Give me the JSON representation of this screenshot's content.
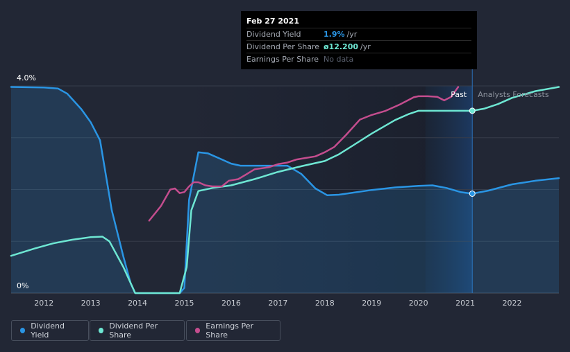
{
  "colors": {
    "dividend_yield": "#2a95e4",
    "dividend_per_share": "#6ee7d3",
    "earnings_per_share": "#c44d8e",
    "background": "#222735",
    "grid": "#363c4a"
  },
  "tooltip": {
    "date": "Feb 27 2021",
    "rows": [
      {
        "name": "Dividend Yield",
        "value": "1.9%",
        "unit": "/yr"
      },
      {
        "name": "Dividend Per Share",
        "value": "ø12.200",
        "unit": "/yr"
      },
      {
        "name": "Earnings Per Share",
        "nodata": "No data"
      }
    ]
  },
  "legend": [
    {
      "label": "Dividend Yield"
    },
    {
      "label": "Dividend Per Share"
    },
    {
      "label": "Earnings Per Share"
    }
  ],
  "chart_data": {
    "type": "line",
    "x_domain": [
      2011.3,
      2023.0
    ],
    "y_labels": [
      "4.0%",
      "0%"
    ],
    "ylim": [
      0,
      4.0
    ],
    "x_ticks": [
      "2012",
      "2013",
      "2014",
      "2015",
      "2016",
      "2017",
      "2018",
      "2019",
      "2020",
      "2021",
      "2022"
    ],
    "past_label": "Past",
    "forecast_label": "Analysts Forecasts",
    "cursor_x": 2021.15,
    "series": [
      {
        "name": "Dividend Yield",
        "values": [
          [
            2011.3,
            3.98
          ],
          [
            2012.0,
            3.97
          ],
          [
            2012.3,
            3.95
          ],
          [
            2012.5,
            3.85
          ],
          [
            2012.8,
            3.55
          ],
          [
            2013.0,
            3.3
          ],
          [
            2013.2,
            2.95
          ],
          [
            2013.45,
            1.6
          ],
          [
            2013.7,
            0.7
          ],
          [
            2013.85,
            0.2
          ],
          [
            2013.95,
            0.0
          ],
          [
            2014.9,
            0.0
          ],
          [
            2015.0,
            0.1
          ],
          [
            2015.1,
            1.8
          ],
          [
            2015.3,
            2.72
          ],
          [
            2015.5,
            2.7
          ],
          [
            2015.8,
            2.58
          ],
          [
            2016.0,
            2.5
          ],
          [
            2016.2,
            2.46
          ],
          [
            2017.2,
            2.46
          ],
          [
            2017.5,
            2.3
          ],
          [
            2017.8,
            2.02
          ],
          [
            2018.05,
            1.89
          ],
          [
            2018.3,
            1.9
          ],
          [
            2019.0,
            1.99
          ],
          [
            2019.5,
            2.04
          ],
          [
            2020.0,
            2.07
          ],
          [
            2020.3,
            2.08
          ],
          [
            2020.6,
            2.03
          ],
          [
            2020.9,
            1.95
          ],
          [
            2021.15,
            1.92
          ],
          [
            2021.5,
            1.98
          ],
          [
            2022.0,
            2.1
          ],
          [
            2022.5,
            2.17
          ],
          [
            2023.0,
            2.22
          ]
        ]
      },
      {
        "name": "Dividend Per Share",
        "values": [
          [
            2011.3,
            0.72
          ],
          [
            2011.8,
            0.86
          ],
          [
            2012.2,
            0.96
          ],
          [
            2012.6,
            1.03
          ],
          [
            2013.0,
            1.08
          ],
          [
            2013.25,
            1.09
          ],
          [
            2013.4,
            1.0
          ],
          [
            2013.7,
            0.5
          ],
          [
            2013.95,
            0.0
          ],
          [
            2014.9,
            0.0
          ],
          [
            2015.05,
            0.5
          ],
          [
            2015.15,
            1.6
          ],
          [
            2015.3,
            1.97
          ],
          [
            2015.6,
            2.03
          ],
          [
            2016.0,
            2.08
          ],
          [
            2016.5,
            2.2
          ],
          [
            2017.0,
            2.34
          ],
          [
            2017.5,
            2.45
          ],
          [
            2018.0,
            2.55
          ],
          [
            2018.3,
            2.68
          ],
          [
            2018.6,
            2.85
          ],
          [
            2019.0,
            3.08
          ],
          [
            2019.5,
            3.34
          ],
          [
            2019.8,
            3.46
          ],
          [
            2020.0,
            3.52
          ],
          [
            2020.3,
            3.52
          ],
          [
            2021.15,
            3.52
          ],
          [
            2021.4,
            3.56
          ],
          [
            2021.7,
            3.65
          ],
          [
            2022.0,
            3.77
          ],
          [
            2022.5,
            3.9
          ],
          [
            2023.0,
            3.98
          ]
        ]
      },
      {
        "name": "Earnings Per Share",
        "values": [
          [
            2014.25,
            1.4
          ],
          [
            2014.5,
            1.68
          ],
          [
            2014.7,
            2.0
          ],
          [
            2014.8,
            2.02
          ],
          [
            2014.9,
            1.93
          ],
          [
            2015.0,
            1.95
          ],
          [
            2015.1,
            2.06
          ],
          [
            2015.2,
            2.14
          ],
          [
            2015.3,
            2.14
          ],
          [
            2015.45,
            2.08
          ],
          [
            2015.6,
            2.06
          ],
          [
            2015.8,
            2.06
          ],
          [
            2015.95,
            2.17
          ],
          [
            2016.15,
            2.2
          ],
          [
            2016.3,
            2.28
          ],
          [
            2016.5,
            2.39
          ],
          [
            2016.8,
            2.43
          ],
          [
            2017.0,
            2.49
          ],
          [
            2017.2,
            2.52
          ],
          [
            2017.4,
            2.58
          ],
          [
            2017.6,
            2.61
          ],
          [
            2017.8,
            2.64
          ],
          [
            2018.0,
            2.72
          ],
          [
            2018.2,
            2.82
          ],
          [
            2018.45,
            3.05
          ],
          [
            2018.75,
            3.35
          ],
          [
            2019.0,
            3.44
          ],
          [
            2019.3,
            3.52
          ],
          [
            2019.6,
            3.64
          ],
          [
            2019.9,
            3.78
          ],
          [
            2020.0,
            3.8
          ],
          [
            2020.2,
            3.8
          ],
          [
            2020.4,
            3.79
          ],
          [
            2020.55,
            3.72
          ],
          [
            2020.7,
            3.79
          ],
          [
            2020.85,
            3.98
          ]
        ]
      }
    ],
    "markers": [
      {
        "series": "Dividend Yield",
        "x": 2021.15,
        "y": 1.92
      },
      {
        "series": "Dividend Per Share",
        "x": 2021.15,
        "y": 3.52
      }
    ]
  }
}
